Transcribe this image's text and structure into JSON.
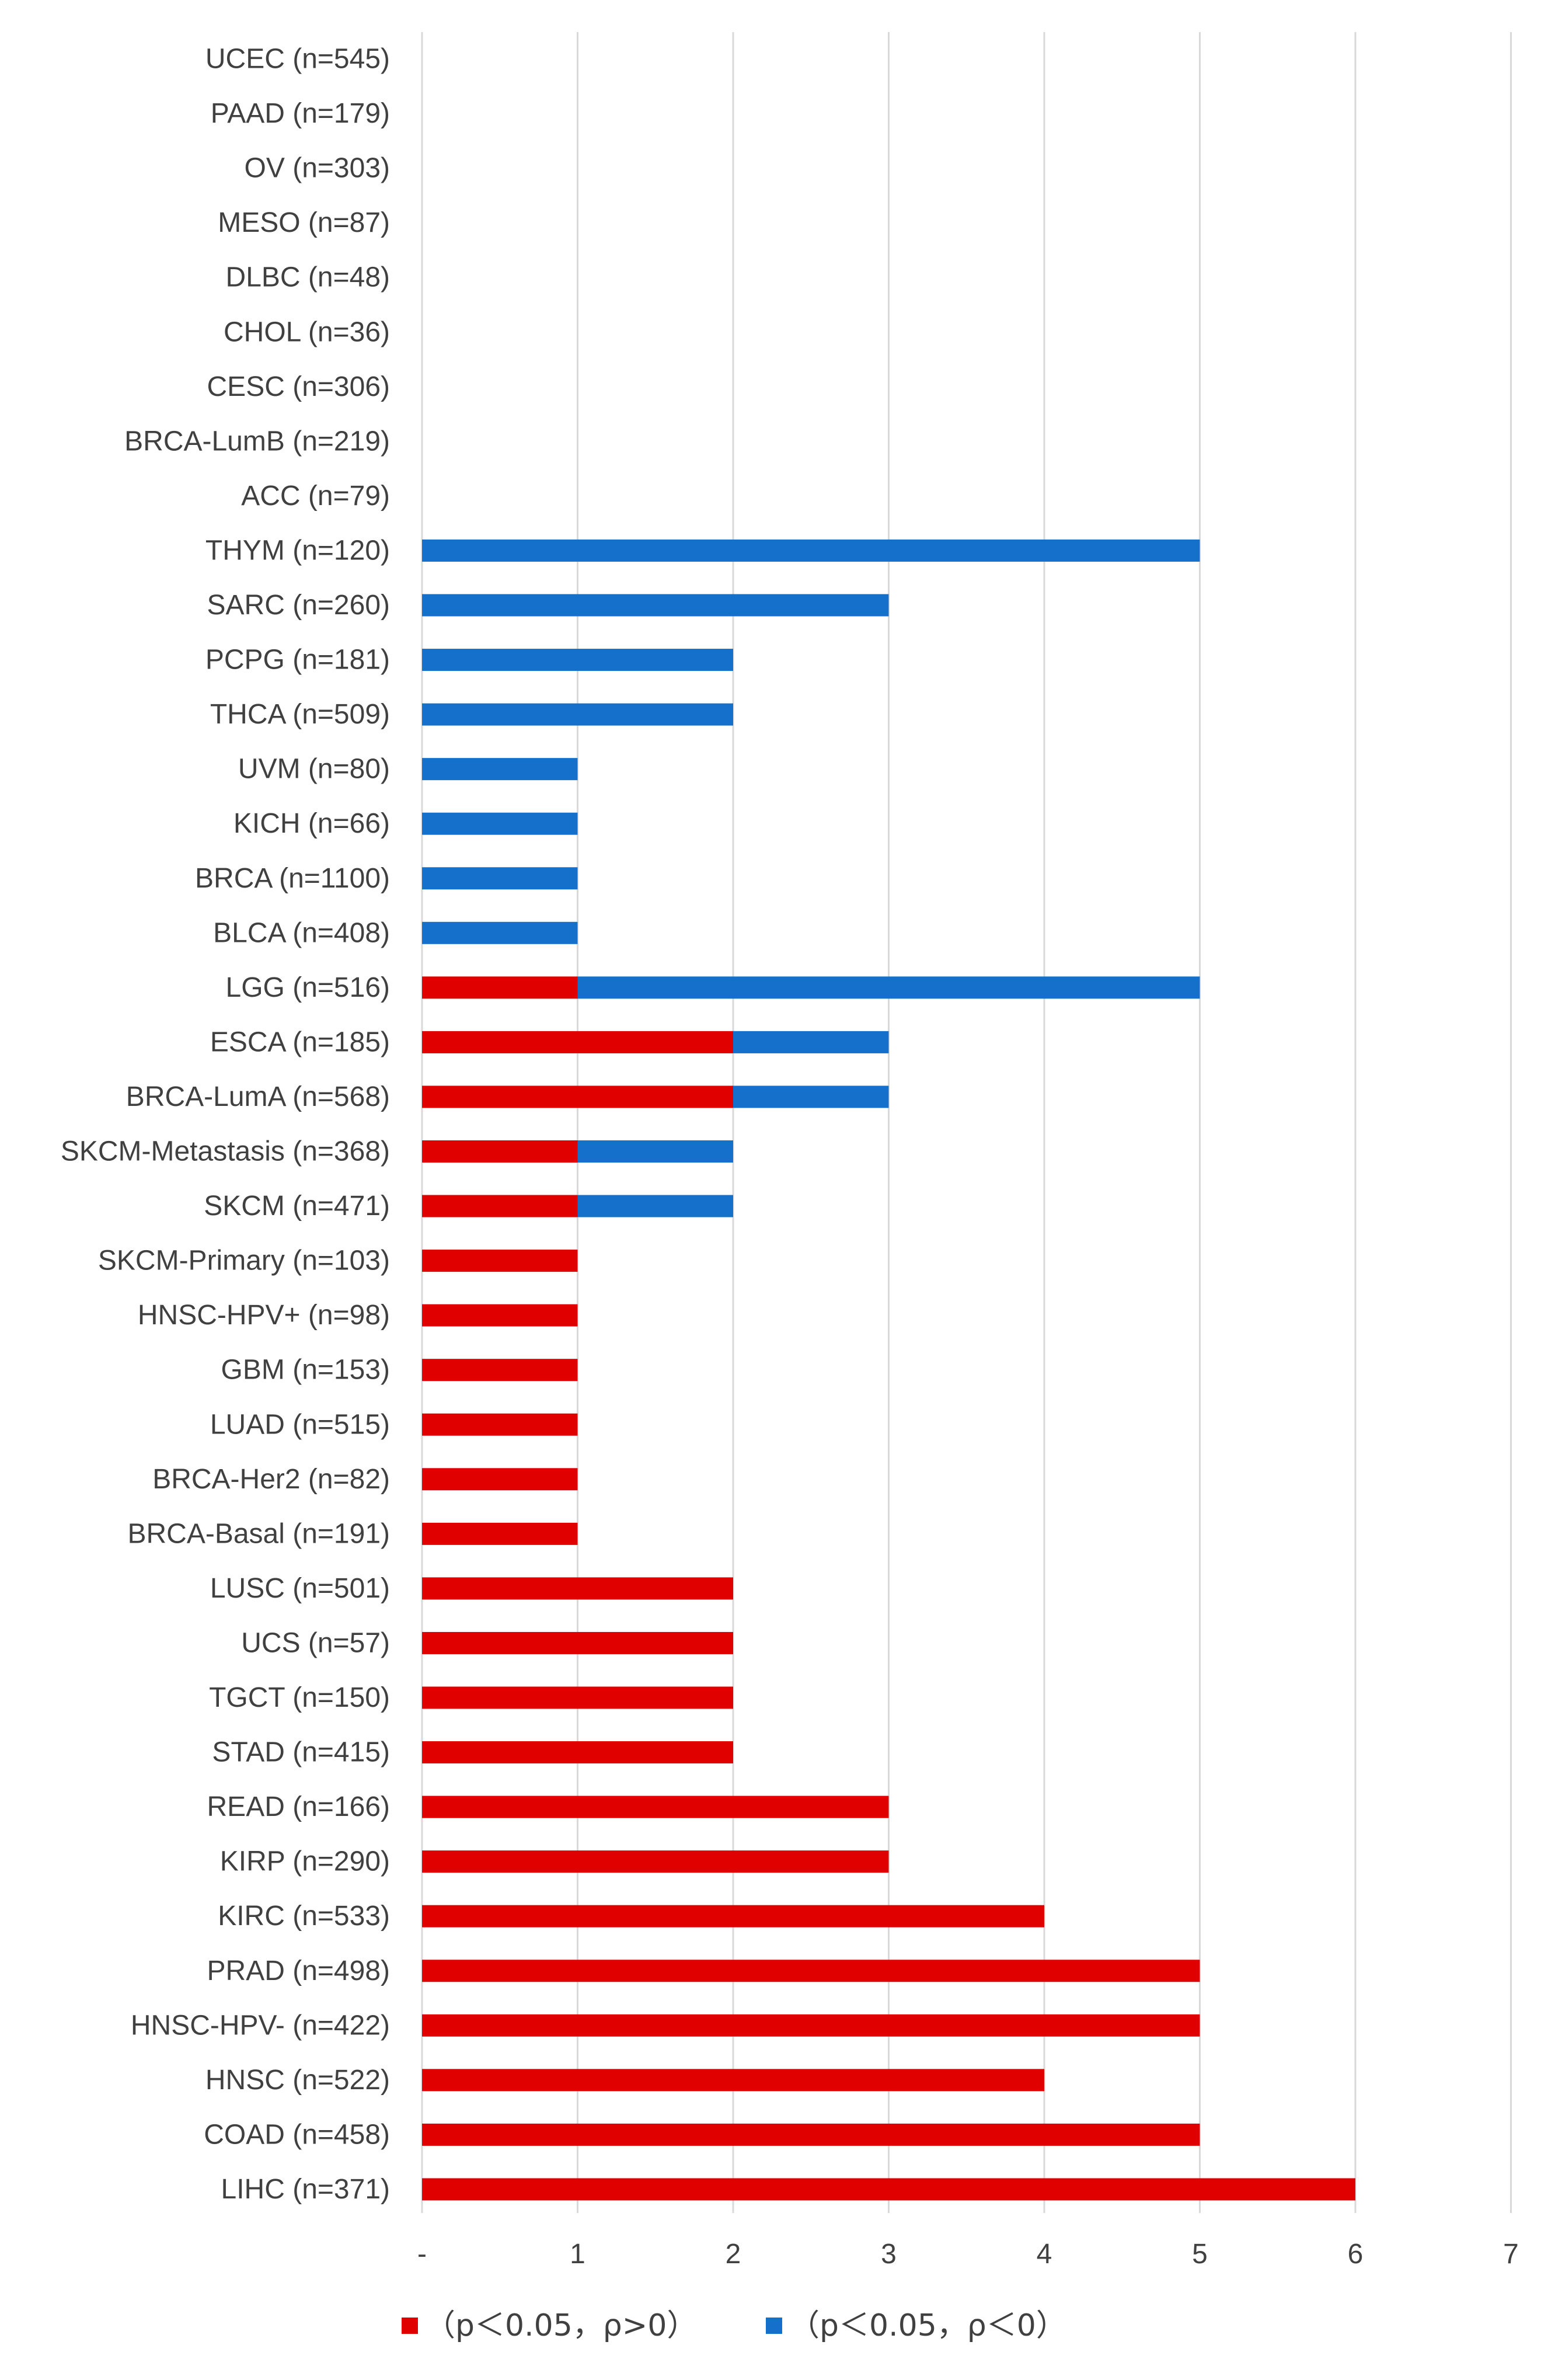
{
  "chart_data": {
    "type": "bar",
    "orientation": "horizontal",
    "stacked": true,
    "title": "",
    "xlabel": "",
    "ylabel": "",
    "xlim": [
      0,
      7
    ],
    "x_ticks": [
      "-",
      "1",
      "2",
      "3",
      "4",
      "5",
      "6",
      "7"
    ],
    "grid": true,
    "legend_position": "bottom",
    "categories": [
      "UCEC (n=545)",
      "PAAD (n=179)",
      "OV (n=303)",
      "MESO (n=87)",
      "DLBC (n=48)",
      "CHOL (n=36)",
      "CESC (n=306)",
      "BRCA-LumB (n=219)",
      "ACC (n=79)",
      "THYM (n=120)",
      "SARC (n=260)",
      "PCPG (n=181)",
      "THCA (n=509)",
      "UVM (n=80)",
      "KICH (n=66)",
      "BRCA (n=1100)",
      "BLCA (n=408)",
      "LGG (n=516)",
      "ESCA (n=185)",
      "BRCA-LumA (n=568)",
      "SKCM-Metastasis (n=368)",
      "SKCM (n=471)",
      "SKCM-Primary (n=103)",
      "HNSC-HPV+ (n=98)",
      "GBM (n=153)",
      "LUAD (n=515)",
      "BRCA-Her2 (n=82)",
      "BRCA-Basal (n=191)",
      "LUSC (n=501)",
      "UCS (n=57)",
      "TGCT (n=150)",
      "STAD (n=415)",
      "READ (n=166)",
      "KIRP (n=290)",
      "KIRC (n=533)",
      "PRAD (n=498)",
      "HNSC-HPV- (n=422)",
      "HNSC (n=522)",
      "COAD (n=458)",
      "LIHC (n=371)"
    ],
    "series": [
      {
        "name": "（p＜0.05，ρ>0）",
        "color": "#E00000",
        "values": [
          0,
          0,
          0,
          0,
          0,
          0,
          0,
          0,
          0,
          0,
          0,
          0,
          0,
          0,
          0,
          0,
          0,
          1,
          2,
          2,
          1,
          1,
          1,
          1,
          1,
          1,
          1,
          1,
          2,
          2,
          2,
          2,
          3,
          3,
          4,
          5,
          5,
          4,
          5,
          6
        ]
      },
      {
        "name": "（p＜0.05，ρ＜0）",
        "color": "#1570CC",
        "values": [
          0,
          0,
          0,
          0,
          0,
          0,
          0,
          0,
          0,
          5,
          3,
          2,
          2,
          1,
          1,
          1,
          1,
          4,
          1,
          1,
          1,
          1,
          0,
          0,
          0,
          0,
          0,
          0,
          0,
          0,
          0,
          0,
          0,
          0,
          0,
          0,
          0,
          0,
          0,
          0
        ]
      }
    ]
  }
}
